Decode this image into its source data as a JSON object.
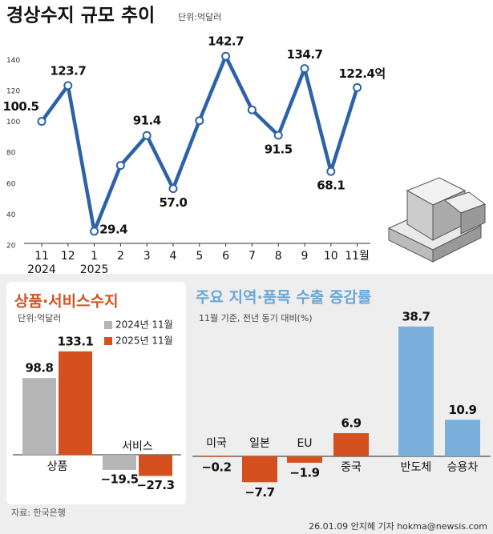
{
  "chart_data": [
    {
      "type": "line",
      "title": "경상수지 규모 추이",
      "unit": "단위:억달러",
      "categories": [
        "11",
        "12",
        "1",
        "2",
        "3",
        "4",
        "5",
        "6",
        "7",
        "8",
        "9",
        "10",
        "11월"
      ],
      "category_years": [
        "2024",
        null,
        "2025",
        null,
        null,
        null,
        null,
        null,
        null,
        null,
        null,
        null,
        null
      ],
      "values": [
        100.5,
        123.7,
        29.4,
        72,
        91.4,
        57,
        101,
        142.7,
        108,
        91.5,
        134.7,
        68.1,
        122.4
      ],
      "value_labels": [
        "100.5",
        "123.7",
        "29.4",
        null,
        "91.4",
        "57.0",
        null,
        "142.7",
        null,
        "91.5",
        "134.7",
        "68.1",
        "122.4억"
      ],
      "color": "#2d62a8",
      "ylim": [
        20,
        148
      ],
      "yticks": [
        20,
        40,
        60,
        80,
        100,
        120,
        140
      ],
      "grid": false
    },
    {
      "type": "grouped-bar",
      "title": "상품·서비스수지",
      "unit": "단위:억달러",
      "categories": [
        "상품",
        "서비스"
      ],
      "series": [
        {
          "name": "2024년 11월",
          "color": "#b5b5b5",
          "values": [
            98.8,
            -19.5
          ],
          "value_labels": [
            "98.8",
            "−19.5"
          ]
        },
        {
          "name": "2025년 11월",
          "color": "#d4501f",
          "values": [
            133.1,
            -27.3
          ],
          "value_labels": [
            "133.1",
            "−27.3"
          ]
        }
      ]
    },
    {
      "type": "bar",
      "title": "주요 지역·품목 수출 증감률",
      "subtitle": "11월 기준, 전년 동기 대비(%)",
      "categories": [
        "미국",
        "일본",
        "EU",
        "중국",
        "반도체",
        "승용차"
      ],
      "values": [
        -0.2,
        -7.7,
        -1.9,
        6.9,
        38.7,
        10.9
      ],
      "value_labels": [
        "−0.2",
        "−7.7",
        "−1.9",
        "6.9",
        "38.7",
        "10.9"
      ],
      "colors": [
        "#d4501f",
        "#d4501f",
        "#d4501f",
        "#d4501f",
        "#7aaedb",
        "#7aaedb"
      ]
    }
  ],
  "source": "자료: 한국은행",
  "credit": "26.01.09 안지혜 기자 hokma@newsis.com"
}
